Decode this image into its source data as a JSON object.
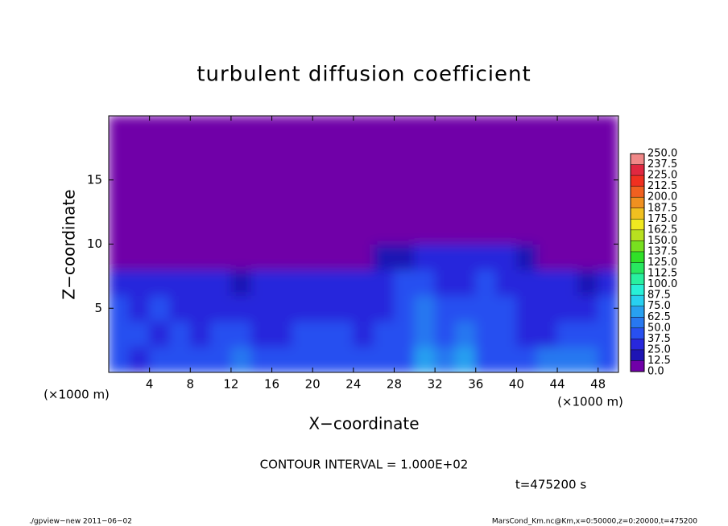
{
  "chart_data": {
    "type": "heatmap",
    "title": "turbulent diffusion coefficient",
    "xlabel": "X−coordinate",
    "ylabel": "Z−coordinate",
    "xlabel_unit": "(×1000 m)",
    "ylabel_unit": "(×1000 m)",
    "xlim": [
      0,
      50
    ],
    "ylim": [
      0,
      20
    ],
    "xticks": [
      4,
      8,
      12,
      16,
      20,
      24,
      28,
      32,
      36,
      40,
      44,
      48
    ],
    "yticks": [
      5,
      10,
      15
    ],
    "x_edges": [
      0,
      2,
      4,
      6,
      8,
      10,
      12,
      14,
      16,
      18,
      20,
      22,
      24,
      26,
      28,
      30,
      32,
      34,
      36,
      38,
      40,
      42,
      44,
      46,
      48,
      50
    ],
    "y_edges": [
      0,
      2,
      4,
      6,
      8,
      10,
      20
    ],
    "z": [
      [
        37.5,
        25,
        37.5,
        37.5,
        37.5,
        37.5,
        50,
        37.5,
        37.5,
        37.5,
        37.5,
        37.5,
        37.5,
        37.5,
        37.5,
        62.5,
        50,
        62.5,
        37.5,
        37.5,
        37.5,
        50,
        50,
        50,
        37.5
      ],
      [
        37.5,
        37.5,
        25,
        37.5,
        25,
        37.5,
        37.5,
        25,
        25,
        37.5,
        37.5,
        37.5,
        25,
        37.5,
        37.5,
        50,
        37.5,
        50,
        37.5,
        37.5,
        25,
        25,
        37.5,
        37.5,
        37.5
      ],
      [
        37.5,
        25,
        37.5,
        25,
        25,
        25,
        25,
        25,
        25,
        25,
        25,
        25,
        25,
        25,
        37.5,
        50,
        37.5,
        37.5,
        37.5,
        37.5,
        25,
        25,
        25,
        25,
        37.5
      ],
      [
        25,
        25,
        25,
        25,
        25,
        25,
        12.5,
        25,
        25,
        25,
        25,
        25,
        25,
        25,
        37.5,
        37.5,
        25,
        25,
        37.5,
        25,
        25,
        25,
        25,
        12.5,
        25
      ],
      [
        0,
        0,
        0,
        0,
        0,
        0,
        0,
        0,
        0,
        0,
        0,
        0,
        0,
        12.5,
        12.5,
        25,
        25,
        25,
        25,
        25,
        12.5,
        0,
        0,
        0,
        0
      ],
      [
        0,
        0,
        0,
        0,
        0,
        0,
        0,
        0,
        0,
        0,
        0,
        0,
        0,
        0,
        0,
        0,
        0,
        0,
        0,
        0,
        0,
        0,
        0,
        0,
        0
      ]
    ],
    "levels": [
      {
        "value": 0,
        "label": "0.0"
      },
      {
        "value": 12.5,
        "label": "12.5"
      },
      {
        "value": 25,
        "label": "25.0"
      },
      {
        "value": 37.5,
        "label": "37.5"
      },
      {
        "value": 50,
        "label": "50.0"
      },
      {
        "value": 62.5,
        "label": "62.5"
      },
      {
        "value": 75,
        "label": "75.0"
      },
      {
        "value": 87.5,
        "label": "87.5"
      },
      {
        "value": 100,
        "label": "100.0"
      },
      {
        "value": 112.5,
        "label": "112.5"
      },
      {
        "value": 125,
        "label": "125.0"
      },
      {
        "value": 137.5,
        "label": "137.5"
      },
      {
        "value": 150,
        "label": "150.0"
      },
      {
        "value": 162.5,
        "label": "162.5"
      },
      {
        "value": 175,
        "label": "175.0"
      },
      {
        "value": 187.5,
        "label": "187.5"
      },
      {
        "value": 200,
        "label": "200.0"
      },
      {
        "value": 212.5,
        "label": "212.5"
      },
      {
        "value": 225,
        "label": "225.0"
      },
      {
        "value": 237.5,
        "label": "237.5"
      },
      {
        "value": 250,
        "label": "250.0"
      }
    ],
    "colors": [
      "#7000a8",
      "#1e14b4",
      "#2828dc",
      "#2850f0",
      "#2878f0",
      "#28a0f0",
      "#28d0f0",
      "#28f0d8",
      "#28f0a0",
      "#28e860",
      "#30e028",
      "#78e020",
      "#b8e020",
      "#f0e820",
      "#f0c020",
      "#f09020",
      "#f06020",
      "#f03020",
      "#e02840",
      "#f08888"
    ],
    "contour_note": "CONTOUR INTERVAL = 1.000E+02",
    "time_label": "t=475200 s",
    "footer_left": "./gpview−new   2011−06−02",
    "footer_right": "MarsCond_Km.nc@Km,x=0:50000,z=0:20000,t=475200"
  }
}
